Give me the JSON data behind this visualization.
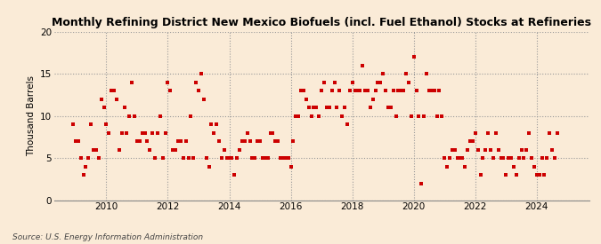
{
  "title": "Monthly Refining District New Mexico Biofuels (incl. Fuel Ethanol) Stocks at Refineries",
  "ylabel": "Thousand Barrels",
  "source": "Source: U.S. Energy Information Administration",
  "background_color": "#faebd7",
  "marker_color": "#cc0000",
  "ylim": [
    0,
    20
  ],
  "yticks": [
    0,
    5,
    10,
    15,
    20
  ],
  "xlim_start": 2008.3,
  "xlim_end": 2025.7,
  "xticks": [
    2010,
    2012,
    2014,
    2016,
    2018,
    2020,
    2022,
    2024
  ],
  "data": [
    [
      2008.917,
      9
    ],
    [
      2009.0,
      7
    ],
    [
      2009.083,
      7
    ],
    [
      2009.167,
      5
    ],
    [
      2009.25,
      3
    ],
    [
      2009.333,
      4
    ],
    [
      2009.417,
      5
    ],
    [
      2009.5,
      9
    ],
    [
      2009.583,
      6
    ],
    [
      2009.667,
      6
    ],
    [
      2009.75,
      5
    ],
    [
      2009.833,
      12
    ],
    [
      2009.917,
      11
    ],
    [
      2010.0,
      9
    ],
    [
      2010.083,
      8
    ],
    [
      2010.167,
      13
    ],
    [
      2010.25,
      13
    ],
    [
      2010.333,
      12
    ],
    [
      2010.417,
      6
    ],
    [
      2010.5,
      8
    ],
    [
      2010.583,
      11
    ],
    [
      2010.667,
      8
    ],
    [
      2010.75,
      10
    ],
    [
      2010.833,
      14
    ],
    [
      2010.917,
      10
    ],
    [
      2011.0,
      7
    ],
    [
      2011.083,
      7
    ],
    [
      2011.167,
      8
    ],
    [
      2011.25,
      8
    ],
    [
      2011.333,
      7
    ],
    [
      2011.417,
      6
    ],
    [
      2011.5,
      8
    ],
    [
      2011.583,
      5
    ],
    [
      2011.667,
      8
    ],
    [
      2011.75,
      10
    ],
    [
      2011.833,
      5
    ],
    [
      2011.917,
      8
    ],
    [
      2012.0,
      14
    ],
    [
      2012.083,
      13
    ],
    [
      2012.167,
      6
    ],
    [
      2012.25,
      6
    ],
    [
      2012.333,
      7
    ],
    [
      2012.417,
      7
    ],
    [
      2012.5,
      5
    ],
    [
      2012.583,
      7
    ],
    [
      2012.667,
      5
    ],
    [
      2012.75,
      10
    ],
    [
      2012.833,
      5
    ],
    [
      2012.917,
      14
    ],
    [
      2013.0,
      13
    ],
    [
      2013.083,
      15
    ],
    [
      2013.167,
      12
    ],
    [
      2013.25,
      5
    ],
    [
      2013.333,
      4
    ],
    [
      2013.417,
      9
    ],
    [
      2013.5,
      8
    ],
    [
      2013.583,
      9
    ],
    [
      2013.667,
      7
    ],
    [
      2013.75,
      5
    ],
    [
      2013.833,
      6
    ],
    [
      2013.917,
      5
    ],
    [
      2014.0,
      5
    ],
    [
      2014.083,
      5
    ],
    [
      2014.167,
      3
    ],
    [
      2014.25,
      5
    ],
    [
      2014.333,
      6
    ],
    [
      2014.417,
      7
    ],
    [
      2014.5,
      7
    ],
    [
      2014.583,
      8
    ],
    [
      2014.667,
      7
    ],
    [
      2014.75,
      5
    ],
    [
      2014.833,
      5
    ],
    [
      2014.917,
      7
    ],
    [
      2015.0,
      7
    ],
    [
      2015.083,
      5
    ],
    [
      2015.167,
      5
    ],
    [
      2015.25,
      5
    ],
    [
      2015.333,
      8
    ],
    [
      2015.417,
      8
    ],
    [
      2015.5,
      7
    ],
    [
      2015.583,
      7
    ],
    [
      2015.667,
      5
    ],
    [
      2015.75,
      5
    ],
    [
      2015.833,
      5
    ],
    [
      2015.917,
      5
    ],
    [
      2016.0,
      4
    ],
    [
      2016.083,
      7
    ],
    [
      2016.167,
      10
    ],
    [
      2016.25,
      10
    ],
    [
      2016.333,
      13
    ],
    [
      2016.417,
      13
    ],
    [
      2016.5,
      12
    ],
    [
      2016.583,
      11
    ],
    [
      2016.667,
      10
    ],
    [
      2016.75,
      11
    ],
    [
      2016.833,
      11
    ],
    [
      2016.917,
      10
    ],
    [
      2017.0,
      13
    ],
    [
      2017.083,
      14
    ],
    [
      2017.167,
      11
    ],
    [
      2017.25,
      11
    ],
    [
      2017.333,
      13
    ],
    [
      2017.417,
      14
    ],
    [
      2017.5,
      11
    ],
    [
      2017.583,
      13
    ],
    [
      2017.667,
      10
    ],
    [
      2017.75,
      11
    ],
    [
      2017.833,
      9
    ],
    [
      2017.917,
      13
    ],
    [
      2018.0,
      14
    ],
    [
      2018.083,
      13
    ],
    [
      2018.167,
      13
    ],
    [
      2018.25,
      13
    ],
    [
      2018.333,
      16
    ],
    [
      2018.417,
      13
    ],
    [
      2018.5,
      13
    ],
    [
      2018.583,
      11
    ],
    [
      2018.667,
      12
    ],
    [
      2018.75,
      13
    ],
    [
      2018.833,
      14
    ],
    [
      2018.917,
      14
    ],
    [
      2019.0,
      15
    ],
    [
      2019.083,
      13
    ],
    [
      2019.167,
      11
    ],
    [
      2019.25,
      11
    ],
    [
      2019.333,
      13
    ],
    [
      2019.417,
      10
    ],
    [
      2019.5,
      13
    ],
    [
      2019.583,
      13
    ],
    [
      2019.667,
      13
    ],
    [
      2019.75,
      15
    ],
    [
      2019.833,
      14
    ],
    [
      2019.917,
      10
    ],
    [
      2020.0,
      17
    ],
    [
      2020.083,
      13
    ],
    [
      2020.167,
      10
    ],
    [
      2020.25,
      2
    ],
    [
      2020.333,
      10
    ],
    [
      2020.417,
      15
    ],
    [
      2020.5,
      13
    ],
    [
      2020.583,
      13
    ],
    [
      2020.667,
      13
    ],
    [
      2020.75,
      10
    ],
    [
      2020.833,
      13
    ],
    [
      2020.917,
      10
    ],
    [
      2021.0,
      5
    ],
    [
      2021.083,
      4
    ],
    [
      2021.167,
      5
    ],
    [
      2021.25,
      6
    ],
    [
      2021.333,
      6
    ],
    [
      2021.417,
      5
    ],
    [
      2021.5,
      5
    ],
    [
      2021.583,
      5
    ],
    [
      2021.667,
      4
    ],
    [
      2021.75,
      6
    ],
    [
      2021.833,
      7
    ],
    [
      2021.917,
      7
    ],
    [
      2022.0,
      8
    ],
    [
      2022.083,
      6
    ],
    [
      2022.167,
      3
    ],
    [
      2022.25,
      5
    ],
    [
      2022.333,
      6
    ],
    [
      2022.417,
      8
    ],
    [
      2022.5,
      6
    ],
    [
      2022.583,
      5
    ],
    [
      2022.667,
      8
    ],
    [
      2022.75,
      6
    ],
    [
      2022.833,
      5
    ],
    [
      2022.917,
      5
    ],
    [
      2023.0,
      3
    ],
    [
      2023.083,
      5
    ],
    [
      2023.167,
      5
    ],
    [
      2023.25,
      4
    ],
    [
      2023.333,
      3
    ],
    [
      2023.417,
      5
    ],
    [
      2023.5,
      6
    ],
    [
      2023.583,
      5
    ],
    [
      2023.667,
      6
    ],
    [
      2023.75,
      8
    ],
    [
      2023.833,
      5
    ],
    [
      2023.917,
      4
    ],
    [
      2024.0,
      3
    ],
    [
      2024.083,
      3
    ],
    [
      2024.167,
      5
    ],
    [
      2024.25,
      3
    ],
    [
      2024.333,
      5
    ],
    [
      2024.417,
      8
    ],
    [
      2024.5,
      6
    ],
    [
      2024.583,
      5
    ],
    [
      2024.667,
      8
    ]
  ]
}
